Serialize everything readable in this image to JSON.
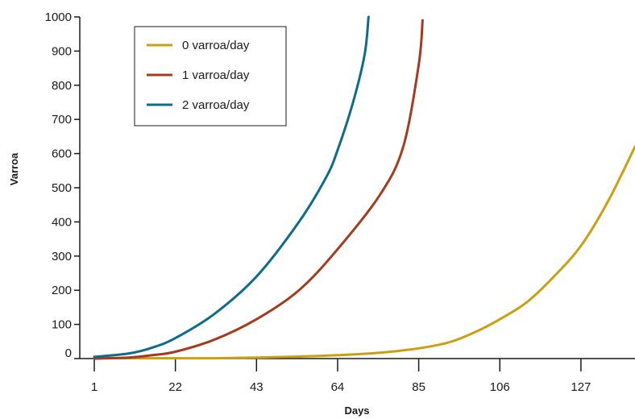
{
  "chart_data": {
    "type": "line",
    "xlabel": "Days",
    "ylabel": "Varroa",
    "x_ticks": [
      1,
      22,
      43,
      64,
      85,
      106,
      127
    ],
    "y_ticks": [
      0,
      100,
      200,
      300,
      400,
      500,
      600,
      700,
      800,
      900,
      1000
    ],
    "xlim": [
      1,
      141
    ],
    "ylim": [
      0,
      1000
    ],
    "grid": false,
    "legend_position": "top-left",
    "series": [
      {
        "name": "0 varroa/day",
        "color": "#c8a012",
        "x": [
          1,
          10,
          22,
          32,
          43,
          54,
          64,
          75,
          85,
          92,
          96,
          101,
          106,
          113,
          120,
          127,
          134,
          141
        ],
        "y": [
          1,
          1,
          1,
          1,
          3,
          6,
          10,
          17,
          30,
          45,
          60,
          85,
          115,
          165,
          240,
          330,
          460,
          620
        ]
      },
      {
        "name": "1 varroa/day",
        "color": "#a33c1f",
        "x": [
          1,
          10,
          16,
          22,
          32,
          43,
          54,
          64,
          75,
          81,
          85,
          86
        ],
        "y": [
          0,
          3,
          10,
          20,
          55,
          115,
          200,
          320,
          480,
          620,
          860,
          990
        ]
      },
      {
        "name": "2 varroa/day",
        "color": "#0f6b8a",
        "x": [
          1,
          10,
          16,
          22,
          32,
          43,
          54,
          61,
          64,
          68,
          71,
          72
        ],
        "y": [
          5,
          15,
          32,
          60,
          130,
          240,
          400,
          530,
          610,
          750,
          890,
          1000
        ]
      }
    ]
  }
}
